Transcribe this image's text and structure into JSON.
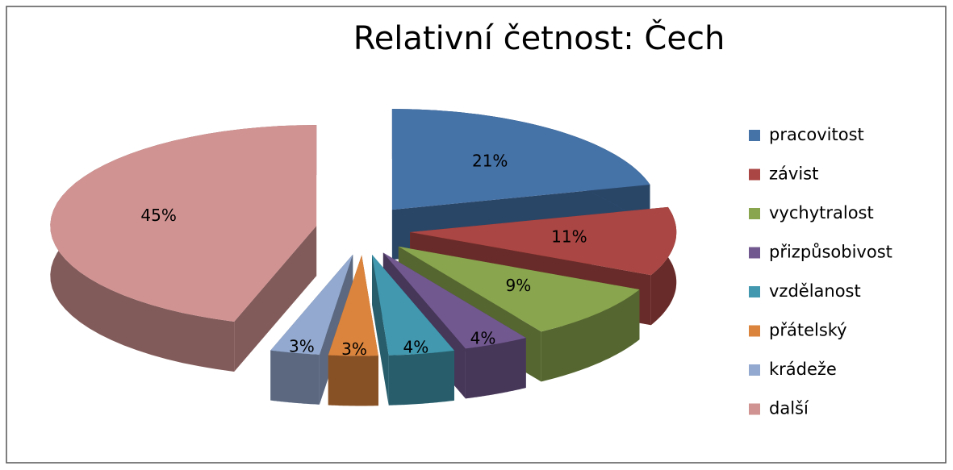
{
  "chart_data": {
    "type": "pie",
    "title": "Relativní četnost: Čech",
    "categories": [
      "pracovitost",
      "závist",
      "vychytralost",
      "přizpůsobivost",
      "vzdělanost",
      "přátelský",
      "krádeže",
      "další"
    ],
    "values": [
      21,
      11,
      9,
      4,
      4,
      3,
      3,
      45
    ],
    "value_labels": [
      "21%",
      "11%",
      "9%",
      "4%",
      "4%",
      "3%",
      "3%",
      "45%"
    ],
    "colors": [
      "#4572a7",
      "#aa4643",
      "#89a54e",
      "#71588f",
      "#4198af",
      "#db843d",
      "#93a9cf",
      "#d19392"
    ],
    "legend": "right"
  }
}
